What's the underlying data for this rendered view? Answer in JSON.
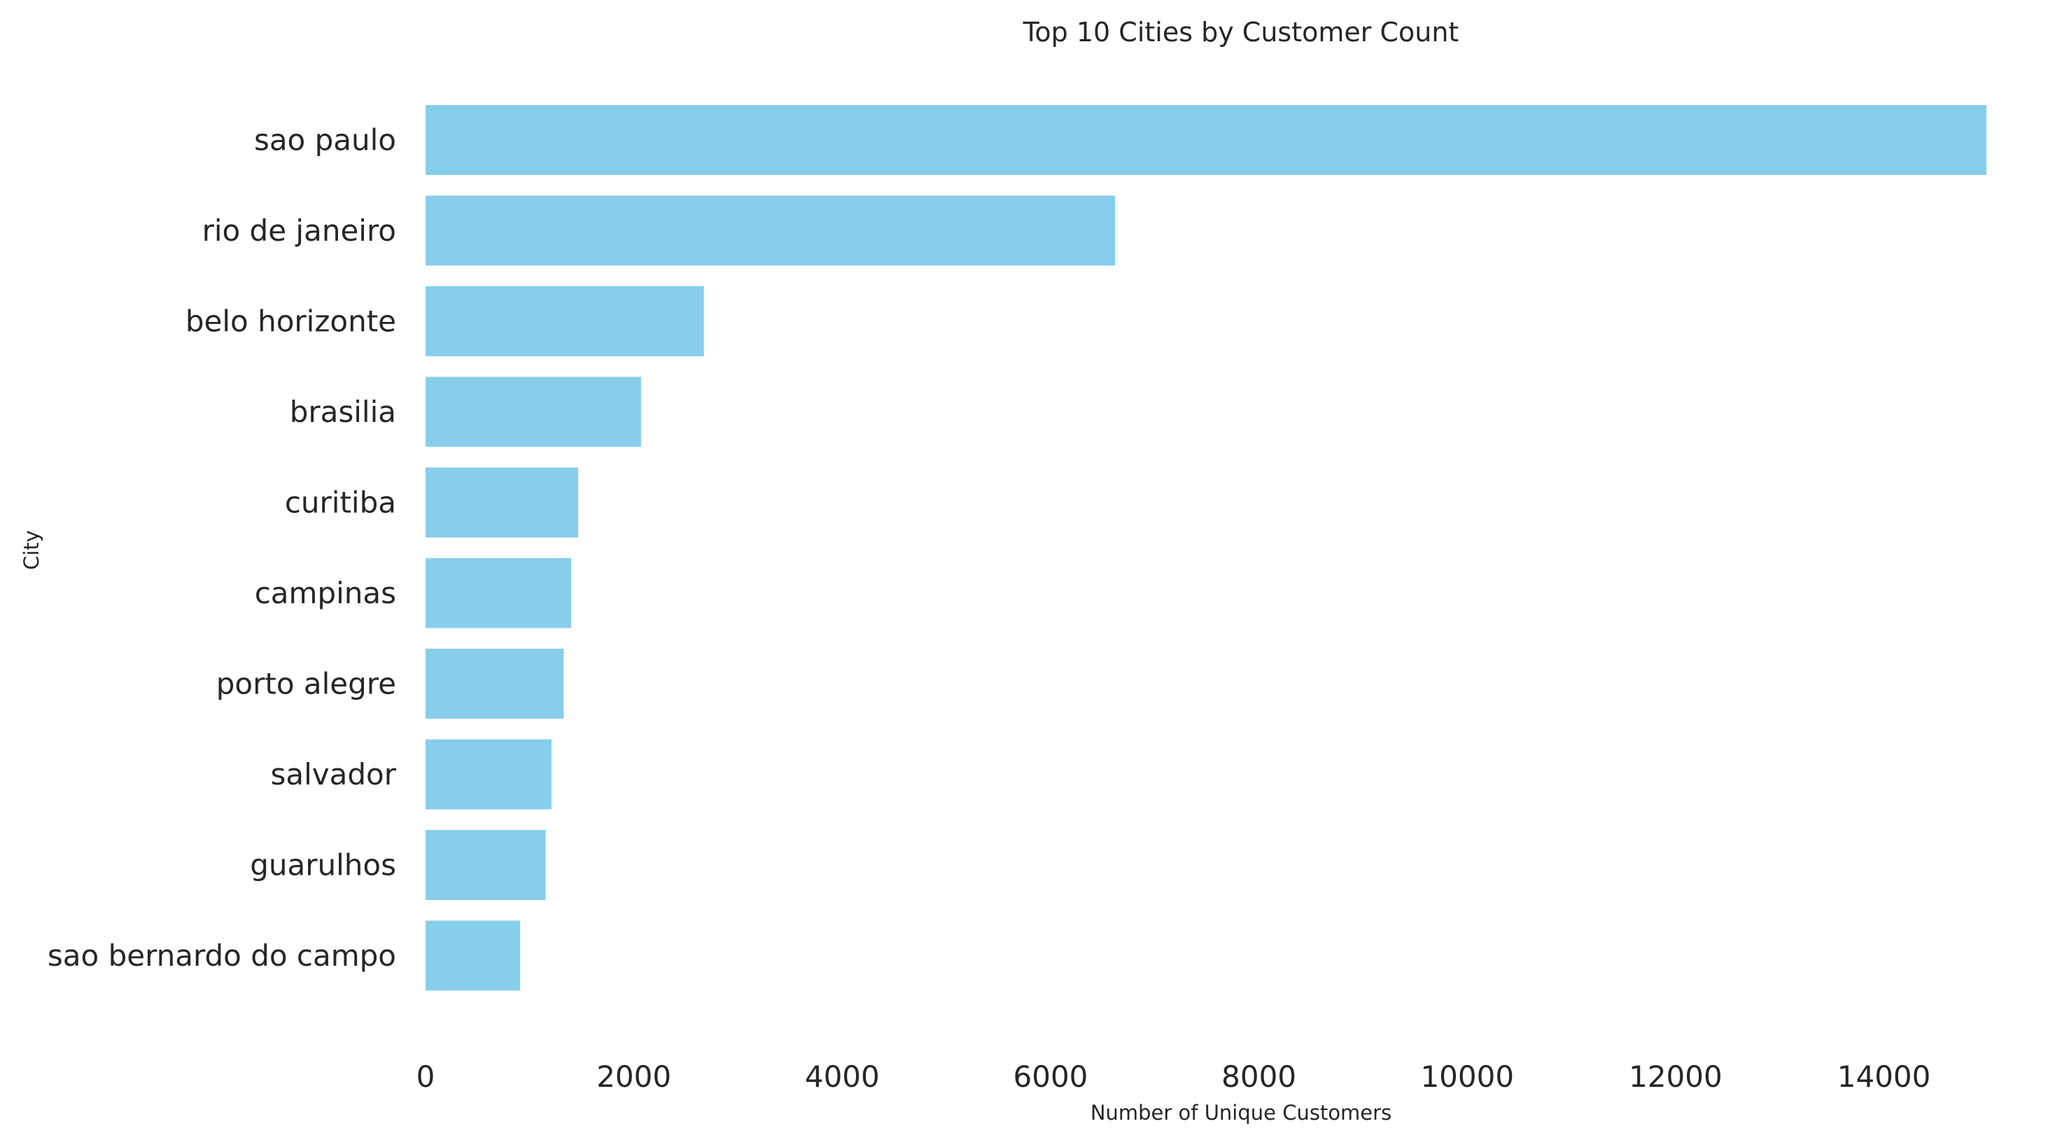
{
  "chart_data": {
    "type": "bar",
    "orientation": "horizontal",
    "title": "Top 10 Cities by Customer Count",
    "xlabel": "Number of Unique Customers",
    "ylabel": "City",
    "categories": [
      "sao paulo",
      "rio de janeiro",
      "belo horizonte",
      "brasilia",
      "curitiba",
      "campinas",
      "porto alegre",
      "salvador",
      "guarulhos",
      "sao bernardo do campo"
    ],
    "values": [
      14984,
      6620,
      2672,
      2069,
      1465,
      1398,
      1326,
      1209,
      1153,
      908
    ],
    "xticks": [
      0,
      2000,
      4000,
      6000,
      8000,
      10000,
      12000,
      14000
    ],
    "xlim": [
      0,
      14984
    ],
    "bar_color": "#87ceeb",
    "text_color": "#262626",
    "grid": false
  }
}
